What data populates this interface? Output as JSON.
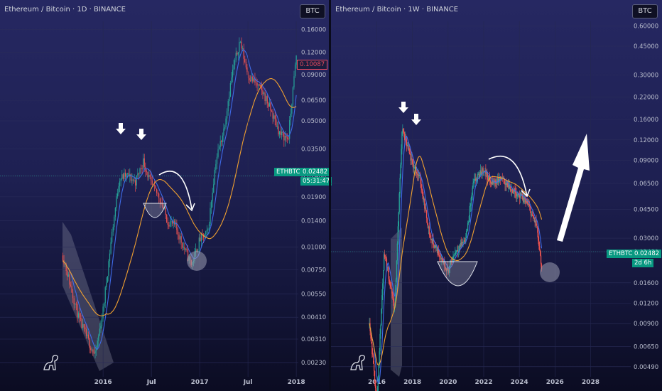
{
  "panels": [
    {
      "title": "Ethereum / Bitcoin · 1D · BINANCE",
      "currency": "BTC",
      "yticks": [
        "0.16000",
        "0.12000",
        "0.09000",
        "0.06500",
        "0.05000",
        "0.03500",
        "0.02480",
        "0.01900",
        "0.01400",
        "0.01000",
        "0.00750",
        "0.00550",
        "0.00410",
        "0.00310",
        "0.00230"
      ],
      "xticks": [
        "2016",
        "Jul",
        "2017",
        "Jul",
        "2018"
      ],
      "price_label": "0.10087",
      "symbol_label": "ETHBTC",
      "last_label": "0.02482",
      "countdown": "05:31:47"
    },
    {
      "title": "Ethereum / Bitcoin · 1W · BINANCE",
      "currency": "BTC",
      "yticks": [
        "0.60000",
        "0.45000",
        "0.30000",
        "0.22000",
        "0.16000",
        "0.12000",
        "0.09000",
        "0.06500",
        "0.04500",
        "0.03000",
        "0.02480",
        "0.01600",
        "0.01200",
        "0.00900",
        "0.00650",
        "0.00490"
      ],
      "xticks": [
        "2016",
        "2018",
        "2020",
        "2022",
        "2024",
        "2026",
        "2028"
      ],
      "symbol_label": "ETHBTC",
      "last_label": "0.02482",
      "countdown": "2d 6h"
    }
  ],
  "colors": {
    "up": "#26a69a",
    "down": "#ef5350",
    "ma_fast": "#3f6be8",
    "ma_slow": "#f0a030",
    "badge": "#089981",
    "price_badge": "#e84a5f"
  },
  "icons": [
    "tradingview-logo-icon",
    "arrow-down-icon",
    "curved-arrow-icon",
    "big-up-arrow-icon"
  ],
  "chart_data": [
    {
      "type": "line",
      "title": "Ethereum / Bitcoin · 1D · BINANCE",
      "x": [
        "2015-08",
        "2015-10",
        "2015-12",
        "2016-01",
        "2016-02",
        "2016-03",
        "2016-04",
        "2016-05",
        "2016-06",
        "2016-07",
        "2016-08",
        "2016-09",
        "2016-10",
        "2016-11",
        "2016-12",
        "2017-01",
        "2017-02",
        "2017-03",
        "2017-04",
        "2017-05",
        "2017-06",
        "2017-07",
        "2017-08",
        "2017-09",
        "2017-10",
        "2017-11",
        "2017-12",
        "2018-01"
      ],
      "series": [
        {
          "values": [
            0.009,
            0.004,
            0.0025,
            0.0045,
            0.011,
            0.024,
            0.025,
            0.023,
            0.03,
            0.022,
            0.019,
            0.014,
            0.013,
            0.01,
            0.008,
            0.011,
            0.012,
            0.03,
            0.045,
            0.09,
            0.14,
            0.09,
            0.08,
            0.07,
            0.055,
            0.042,
            0.04,
            0.115
          ]
        }
      ],
      "ylim": [
        0.0021,
        0.17
      ],
      "yscale": "log"
    },
    {
      "type": "line",
      "title": "Ethereum / Bitcoin · 1W · BINANCE",
      "x": [
        "2015-08",
        "2016-01",
        "2016-06",
        "2017-01",
        "2017-06",
        "2018-01",
        "2018-06",
        "2019-01",
        "2019-06",
        "2020-01",
        "2020-06",
        "2021-01",
        "2021-06",
        "2022-01",
        "2022-06",
        "2023-01",
        "2023-06",
        "2024-01",
        "2024-06",
        "2025-01",
        "2025-04"
      ],
      "series": [
        {
          "values": [
            0.009,
            0.003,
            0.025,
            0.011,
            0.14,
            0.085,
            0.07,
            0.03,
            0.025,
            0.019,
            0.025,
            0.03,
            0.065,
            0.08,
            0.065,
            0.07,
            0.062,
            0.055,
            0.05,
            0.035,
            0.02
          ]
        }
      ],
      "ylim": [
        0.0047,
        0.62
      ],
      "yscale": "log"
    }
  ]
}
